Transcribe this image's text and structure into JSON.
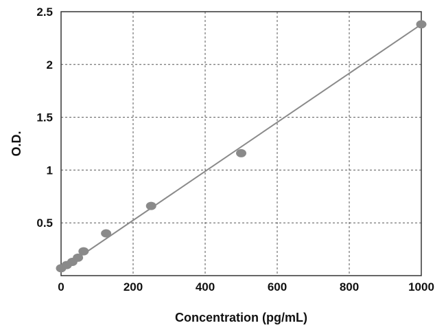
{
  "chart_data": {
    "type": "scatter",
    "title": "",
    "xlabel": "Concentration (pg/mL)",
    "ylabel": "O.D.",
    "xlim": [
      0,
      1000
    ],
    "ylim": [
      0,
      2.5
    ],
    "x_ticks": [
      "0",
      "200",
      "400",
      "600",
      "800",
      "1000"
    ],
    "y_ticks": [
      "0.5",
      "1",
      "1.5",
      "2",
      "2.5"
    ],
    "grid": true,
    "legend": "none",
    "series": [
      {
        "x": [
          0,
          15.6,
          31.2,
          46.9,
          62.5,
          125,
          250,
          500,
          1000
        ],
        "y": [
          0.07,
          0.1,
          0.13,
          0.17,
          0.23,
          0.4,
          0.66,
          1.16,
          2.38
        ],
        "marker_color": "#8a8a8a"
      }
    ],
    "fit_line": {
      "x": [
        0,
        1000
      ],
      "y": [
        0.06,
        2.38
      ],
      "color": "#8a8a8a"
    }
  }
}
